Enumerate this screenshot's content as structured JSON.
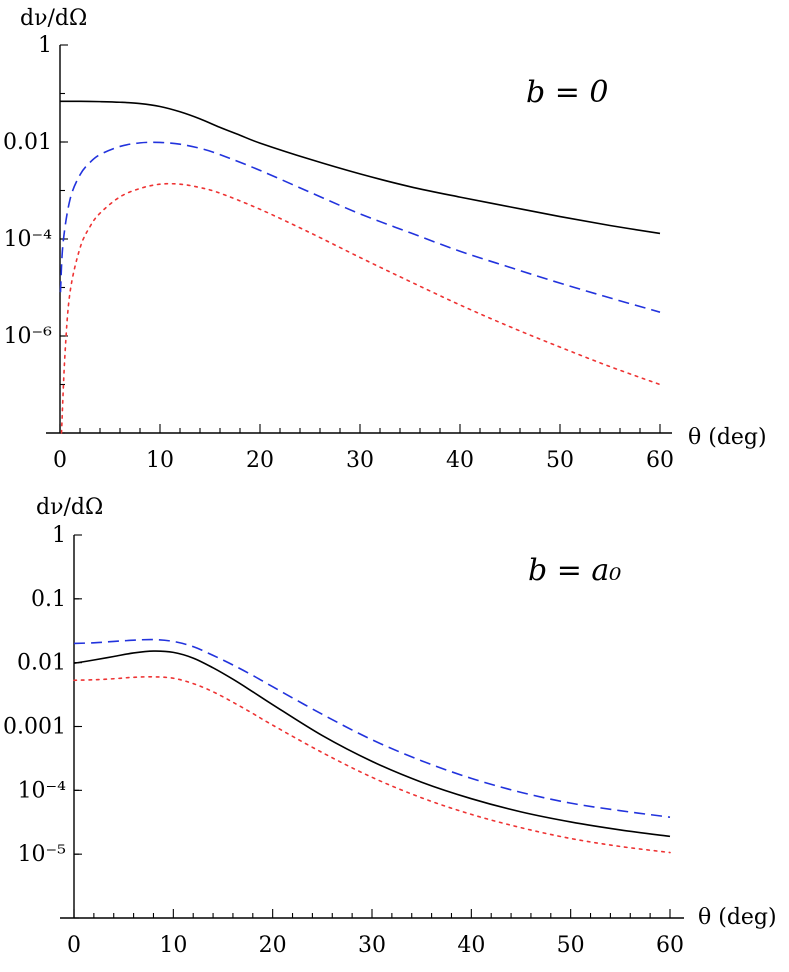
{
  "chart_data": [
    {
      "type": "line",
      "ylabel": "dν/dΩ",
      "xlabel": "θ (deg)",
      "annotation": "b = 0",
      "xlim": [
        0,
        60
      ],
      "ylim_log10": [
        -8,
        0
      ],
      "yscale": "log",
      "grid": false,
      "xticks": [
        "0",
        "10",
        "20",
        "30",
        "40",
        "50",
        "60"
      ],
      "yticks": [
        {
          "label": "1",
          "log10": 0
        },
        {
          "label": "0.01",
          "log10": -2
        },
        {
          "label": "10⁻⁴",
          "log10": -4
        },
        {
          "label": "10⁻⁶",
          "log10": -6
        }
      ],
      "series": [
        {
          "color": "#000000",
          "dash": "solid",
          "x": [
            0,
            2,
            4,
            6,
            8,
            10,
            12,
            14,
            16,
            18,
            20,
            25,
            30,
            35,
            40,
            45,
            50,
            55,
            60
          ],
          "y": [
            0.069,
            0.069,
            0.068,
            0.066,
            0.062,
            0.054,
            0.042,
            0.03,
            0.02,
            0.0138,
            0.0095,
            0.0044,
            0.0022,
            0.0012,
            0.00073,
            0.00046,
            0.00029,
            0.00019,
            0.00013
          ]
        },
        {
          "color": "#2233dd",
          "dash": "dashed",
          "x": [
            0.05,
            0.3,
            1,
            2,
            3,
            4,
            6,
            8,
            10,
            12,
            14,
            16,
            20,
            25,
            30,
            35,
            40,
            45,
            50,
            55,
            60
          ],
          "y": [
            8e-06,
            8e-05,
            0.00065,
            0.0021,
            0.0038,
            0.0055,
            0.0081,
            0.0096,
            0.0098,
            0.009,
            0.0074,
            0.0055,
            0.0026,
            0.00092,
            0.00033,
            0.000135,
            5.6e-05,
            2.6e-05,
            1.23e-05,
            6.1e-06,
            3.1e-06
          ]
        },
        {
          "color": "#ee3333",
          "dash": "dotted",
          "x": [
            0.15,
            0.5,
            1,
            2,
            3,
            4,
            6,
            8,
            10,
            12,
            14,
            16,
            20,
            25,
            30,
            35,
            40,
            45,
            50,
            55,
            60
          ],
          "y": [
            1e-08,
            4.3e-07,
            7.9e-06,
            6.5e-05,
            0.00018,
            0.00034,
            0.00074,
            0.0011,
            0.00135,
            0.00135,
            0.00115,
            0.00088,
            0.00041,
            0.000135,
            4.16e-05,
            1.33e-05,
            4.37e-06,
            1.55e-06,
            5.9e-07,
            2.34e-07,
            1e-07
          ]
        }
      ]
    },
    {
      "type": "line",
      "ylabel": "dν/dΩ",
      "xlabel": "θ (deg)",
      "annotation": "b = a₀",
      "xlim": [
        0,
        60
      ],
      "ylim_log10": [
        -6,
        0
      ],
      "yscale": "log",
      "grid": false,
      "xticks": [
        "0",
        "10",
        "20",
        "30",
        "40",
        "50",
        "60"
      ],
      "yticks": [
        {
          "label": "1",
          "log10": 0
        },
        {
          "label": "0.1",
          "log10": -1
        },
        {
          "label": "0.01",
          "log10": -2
        },
        {
          "label": "0.001",
          "log10": -3
        },
        {
          "label": "10⁻⁴",
          "log10": -4
        },
        {
          "label": "10⁻⁵",
          "log10": -5
        }
      ],
      "series": [
        {
          "color": "#000000",
          "dash": "solid",
          "x": [
            0,
            2,
            4,
            6,
            8,
            10,
            12,
            14,
            16,
            18,
            20,
            25,
            30,
            35,
            40,
            45,
            50,
            55,
            60
          ],
          "y": [
            0.0098,
            0.011,
            0.0125,
            0.0142,
            0.0152,
            0.0145,
            0.0118,
            0.0083,
            0.0055,
            0.0035,
            0.0022,
            0.00072,
            0.000284,
            0.000134,
            7.4e-05,
            4.6e-05,
            3.2e-05,
            2.4e-05,
            1.9e-05
          ]
        },
        {
          "color": "#2233dd",
          "dash": "dashed",
          "x": [
            0,
            2,
            4,
            6,
            8,
            10,
            12,
            14,
            16,
            18,
            20,
            25,
            30,
            35,
            40,
            45,
            50,
            55,
            60
          ],
          "y": [
            0.02,
            0.0205,
            0.0215,
            0.0225,
            0.023,
            0.0215,
            0.0178,
            0.013,
            0.0092,
            0.0063,
            0.0042,
            0.00155,
            0.00062,
            0.00029,
            0.000154,
            9.3e-05,
            6.3e-05,
            4.8e-05,
            3.8e-05
          ]
        },
        {
          "color": "#ee3333",
          "dash": "dotted",
          "x": [
            0,
            2,
            4,
            6,
            8,
            10,
            12,
            14,
            16,
            18,
            20,
            25,
            30,
            35,
            40,
            45,
            50,
            55,
            60
          ],
          "y": [
            0.0053,
            0.0054,
            0.0056,
            0.0059,
            0.006,
            0.0057,
            0.0047,
            0.0035,
            0.0024,
            0.0016,
            0.00105,
            0.00039,
            0.00016,
            7.63e-05,
            4.2e-05,
            2.6e-05,
            1.76e-05,
            1.32e-05,
            1.06e-05
          ]
        }
      ]
    }
  ]
}
